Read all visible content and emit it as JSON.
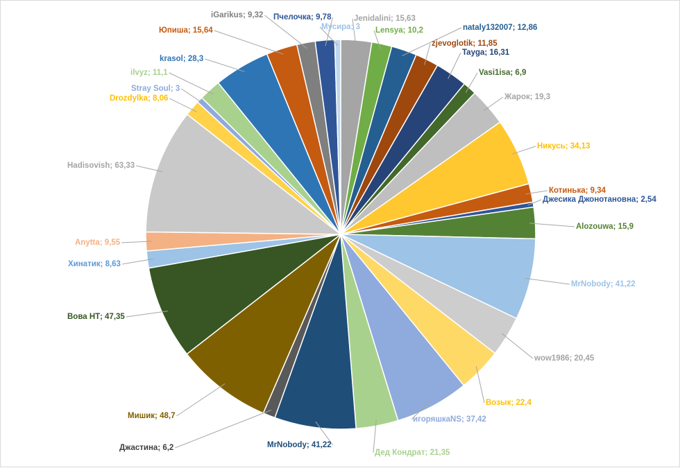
{
  "chart_data": {
    "type": "pie",
    "title": "",
    "slices": [
      {
        "name": "Jenidalini",
        "value": 15.63,
        "color": "#a5a5a5",
        "label_color": "#a5a5a5"
      },
      {
        "name": "Lensya",
        "value": 10.2,
        "color": "#70ad47",
        "label_color": "#70ad47"
      },
      {
        "name": "nataly132007",
        "value": 12.86,
        "color": "#255e91",
        "label_color": "#255e91"
      },
      {
        "name": "zjevoglotik",
        "value": 11.85,
        "color": "#9e480e",
        "label_color": "#9e480e"
      },
      {
        "name": "Tayga",
        "value": 16.31,
        "color": "#264478",
        "label_color": "#264478"
      },
      {
        "name": "Vasi1isa",
        "value": 6.9,
        "color": "#43682b",
        "label_color": "#43682b"
      },
      {
        "name": "Жарок",
        "value": 19.3,
        "color": "#bfbfbf",
        "label_color": "#a5a5a5"
      },
      {
        "name": "Никусь",
        "value": 34.13,
        "color": "#ffc830",
        "label_color": "#ffc000"
      },
      {
        "name": "Котинька",
        "value": 9.34,
        "color": "#c55a11",
        "label_color": "#c55a11"
      },
      {
        "name": "Джесика Джонотановна",
        "value": 2.54,
        "color": "#2e5597",
        "label_color": "#2e5597"
      },
      {
        "name": "Alozouwa",
        "value": 15.9,
        "color": "#548235",
        "label_color": "#548235"
      },
      {
        "name": "MrNobody",
        "value": 41.22,
        "color": "#9dc3e6",
        "label_color": "#9dc3e6"
      },
      {
        "name": "wow1986",
        "value": 20.45,
        "color": "#cdcdcd",
        "label_color": "#a5a5a5"
      },
      {
        "name": "Возык",
        "value": 22.4,
        "color": "#ffd966",
        "label_color": "#ffc000"
      },
      {
        "name": "игоряшкаNS",
        "value": 37.42,
        "color": "#8faadc",
        "label_color": "#8faadc"
      },
      {
        "name": "Дед Кондрат",
        "value": 21.35,
        "color": "#a9d18e",
        "label_color": "#a9d18e"
      },
      {
        "name": "MrNobody",
        "value": 41.22,
        "color": "#1f4e79",
        "label_color": "#1f4e79"
      },
      {
        "name": "Джастина",
        "value": 6.2,
        "color": "#595959",
        "label_color": "#404040"
      },
      {
        "name": "Мишик",
        "value": 48.7,
        "color": "#7f6000",
        "label_color": "#7f6000"
      },
      {
        "name": "Вова НТ",
        "value": 47.35,
        "color": "#375623",
        "label_color": "#375623"
      },
      {
        "name": "Хинатик",
        "value": 8.63,
        "color": "#9dc3e6",
        "label_color": "#5b9bd5"
      },
      {
        "name": "Anytta",
        "value": 9.55,
        "color": "#f4b183",
        "label_color": "#f4b183"
      },
      {
        "name": "Hadisovish",
        "value": 63.33,
        "color": "#c9c9c9",
        "label_color": "#a5a5a5"
      },
      {
        "name": "Drozdylka",
        "value": 8.06,
        "color": "#ffd24a",
        "label_color": "#ffc000"
      },
      {
        "name": "Stray Soul",
        "value": 3,
        "color": "#8faadc",
        "label_color": "#8faadc"
      },
      {
        "name": "ilvyz",
        "value": 11.1,
        "color": "#a9d18e",
        "label_color": "#a9d18e"
      },
      {
        "name": "krasol",
        "value": 28.3,
        "color": "#2e75b6",
        "label_color": "#2e75b6"
      },
      {
        "name": "Юпиша",
        "value": 15.64,
        "color": "#c55a11",
        "label_color": "#c55a11"
      },
      {
        "name": "iGarikus",
        "value": 9.32,
        "color": "#7f7f7f",
        "label_color": "#7f7f7f"
      },
      {
        "name": "Пчелочка",
        "value": 9.78,
        "color": "#2f5597",
        "label_color": "#2f5597"
      },
      {
        "name": "Мусира",
        "value": 3,
        "color": "#bdd7ee",
        "label_color": "#9dc3e6"
      }
    ]
  }
}
